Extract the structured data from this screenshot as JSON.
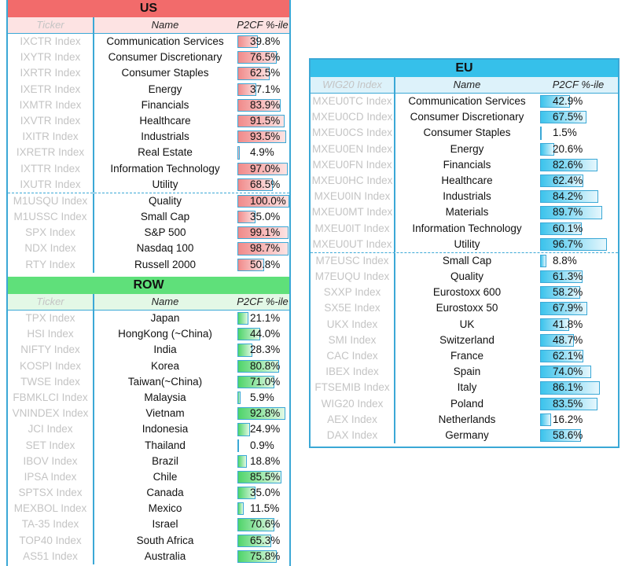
{
  "us": {
    "title": "US",
    "headers": {
      "ticker": "Ticker",
      "name": "Name",
      "value": "P2CF %-ile"
    },
    "rows": [
      {
        "ticker": "IXCTR Index",
        "name": "Communication Services",
        "pct": 39.8,
        "value": "39.8%"
      },
      {
        "ticker": "IXYTR Index",
        "name": "Consumer Discretionary",
        "pct": 76.5,
        "value": "76.5%"
      },
      {
        "ticker": "IXRTR Index",
        "name": "Consumer Staples",
        "pct": 62.5,
        "value": "62.5%"
      },
      {
        "ticker": "IXETR Index",
        "name": "Energy",
        "pct": 37.1,
        "value": "37.1%"
      },
      {
        "ticker": "IXMTR Index",
        "name": "Financials",
        "pct": 83.9,
        "value": "83.9%"
      },
      {
        "ticker": "IXVTR Index",
        "name": "Healthcare",
        "pct": 91.5,
        "value": "91.5%"
      },
      {
        "ticker": "IXITR Index",
        "name": "Industrials",
        "pct": 93.5,
        "value": "93.5%"
      },
      {
        "ticker": "IXRETR Index",
        "name": "Real Estate",
        "pct": 4.9,
        "value": "4.9%"
      },
      {
        "ticker": "IXTTR Index",
        "name": "Information Technology",
        "pct": 97.0,
        "value": "97.0%"
      },
      {
        "ticker": "IXUTR Index",
        "name": "Utility",
        "pct": 68.5,
        "value": "68.5%"
      },
      {
        "ticker": "M1USQU Index",
        "name": "Quality",
        "pct": 100.0,
        "value": "100.0%",
        "sep": true
      },
      {
        "ticker": "M1USSC Index",
        "name": "Small Cap",
        "pct": 35.0,
        "value": "35.0%"
      },
      {
        "ticker": "SPX Index",
        "name": "S&P 500",
        "pct": 99.1,
        "value": "99.1%"
      },
      {
        "ticker": "NDX Index",
        "name": "Nasdaq 100",
        "pct": 98.7,
        "value": "98.7%"
      },
      {
        "ticker": "RTY Index",
        "name": "Russell 2000",
        "pct": 50.8,
        "value": "50.8%"
      }
    ]
  },
  "row": {
    "title": "ROW",
    "headers": {
      "ticker": "Ticker",
      "name": "Name",
      "value": "P2CF %-ile"
    },
    "rows": [
      {
        "ticker": "TPX Index",
        "name": "Japan",
        "pct": 21.1,
        "value": "21.1%"
      },
      {
        "ticker": "HSI Index",
        "name": "HongKong (~China)",
        "pct": 44.0,
        "value": "44.0%"
      },
      {
        "ticker": "NIFTY Index",
        "name": "India",
        "pct": 28.3,
        "value": "28.3%"
      },
      {
        "ticker": "KOSPI Index",
        "name": "Korea",
        "pct": 80.8,
        "value": "80.8%"
      },
      {
        "ticker": "TWSE Index",
        "name": "Taiwan(~China)",
        "pct": 71.0,
        "value": "71.0%"
      },
      {
        "ticker": "FBMKLCI Index",
        "name": "Malaysia",
        "pct": 5.9,
        "value": "5.9%"
      },
      {
        "ticker": "VNINDEX Index",
        "name": "Vietnam",
        "pct": 92.8,
        "value": "92.8%"
      },
      {
        "ticker": "JCI Index",
        "name": "Indonesia",
        "pct": 24.9,
        "value": "24.9%"
      },
      {
        "ticker": "SET Index",
        "name": "Thailand",
        "pct": 0.9,
        "value": "0.9%"
      },
      {
        "ticker": "IBOV Index",
        "name": "Brazil",
        "pct": 18.8,
        "value": "18.8%"
      },
      {
        "ticker": "IPSA Index",
        "name": "Chile",
        "pct": 85.5,
        "value": "85.5%"
      },
      {
        "ticker": "SPTSX Index",
        "name": "Canada",
        "pct": 35.0,
        "value": "35.0%"
      },
      {
        "ticker": "MEXBOL Index",
        "name": "Mexico",
        "pct": 11.5,
        "value": "11.5%"
      },
      {
        "ticker": "TA-35 Index",
        "name": "Israel",
        "pct": 70.6,
        "value": "70.6%"
      },
      {
        "ticker": "TOP40 Index",
        "name": "South Africa",
        "pct": 65.3,
        "value": "65.3%"
      },
      {
        "ticker": "AS51 Index",
        "name": "Australia",
        "pct": 75.8,
        "value": "75.8%"
      }
    ]
  },
  "eu": {
    "title": "EU",
    "headers": {
      "ticker": "WIG20 Index",
      "name": "Name",
      "value": "P2CF %-ile"
    },
    "rows": [
      {
        "ticker": "MXEU0TC Index",
        "name": "Communication Services",
        "pct": 42.9,
        "value": "42.9%"
      },
      {
        "ticker": "MXEU0CD Index",
        "name": "Consumer Discretionary",
        "pct": 67.5,
        "value": "67.5%"
      },
      {
        "ticker": "MXEU0CS Index",
        "name": "Consumer Staples",
        "pct": 1.5,
        "value": "1.5%"
      },
      {
        "ticker": "MXEU0EN Index",
        "name": "Energy",
        "pct": 20.6,
        "value": "20.6%"
      },
      {
        "ticker": "MXEU0FN Index",
        "name": "Financials",
        "pct": 82.6,
        "value": "82.6%"
      },
      {
        "ticker": "MXEU0HC Index",
        "name": "Healthcare",
        "pct": 62.4,
        "value": "62.4%"
      },
      {
        "ticker": "MXEU0IN Index",
        "name": "Industrials",
        "pct": 84.2,
        "value": "84.2%"
      },
      {
        "ticker": "MXEU0MT Index",
        "name": "Materials",
        "pct": 89.7,
        "value": "89.7%"
      },
      {
        "ticker": "MXEU0IT Index",
        "name": "Information Technology",
        "pct": 60.1,
        "value": "60.1%"
      },
      {
        "ticker": "MXEU0UT Index",
        "name": "Utility",
        "pct": 96.7,
        "value": "96.7%"
      },
      {
        "ticker": "M7EUSC Index",
        "name": "Small Cap",
        "pct": 8.8,
        "value": "8.8%",
        "sep": true
      },
      {
        "ticker": "M7EUQU Index",
        "name": "Quality",
        "pct": 61.3,
        "value": "61.3%"
      },
      {
        "ticker": "SXXP Index",
        "name": "Eurostoxx 600",
        "pct": 58.2,
        "value": "58.2%"
      },
      {
        "ticker": "SX5E Index",
        "name": "Eurostoxx 50",
        "pct": 67.9,
        "value": "67.9%"
      },
      {
        "ticker": "UKX Index",
        "name": "UK",
        "pct": 41.8,
        "value": "41.8%"
      },
      {
        "ticker": "SMI Index",
        "name": "Switzerland",
        "pct": 48.7,
        "value": "48.7%"
      },
      {
        "ticker": "CAC Index",
        "name": "France",
        "pct": 62.1,
        "value": "62.1%"
      },
      {
        "ticker": "IBEX Index",
        "name": "Spain",
        "pct": 74.0,
        "value": "74.0%"
      },
      {
        "ticker": "FTSEMIB Index",
        "name": "Italy",
        "pct": 86.1,
        "value": "86.1%"
      },
      {
        "ticker": "WIG20 Index",
        "name": "Poland",
        "pct": 83.5,
        "value": "83.5%"
      },
      {
        "ticker": "AEX Index",
        "name": "Netherlands",
        "pct": 16.2,
        "value": "16.2%"
      },
      {
        "ticker": "DAX Index",
        "name": "Germany",
        "pct": 58.6,
        "value": "58.6%"
      }
    ]
  }
}
